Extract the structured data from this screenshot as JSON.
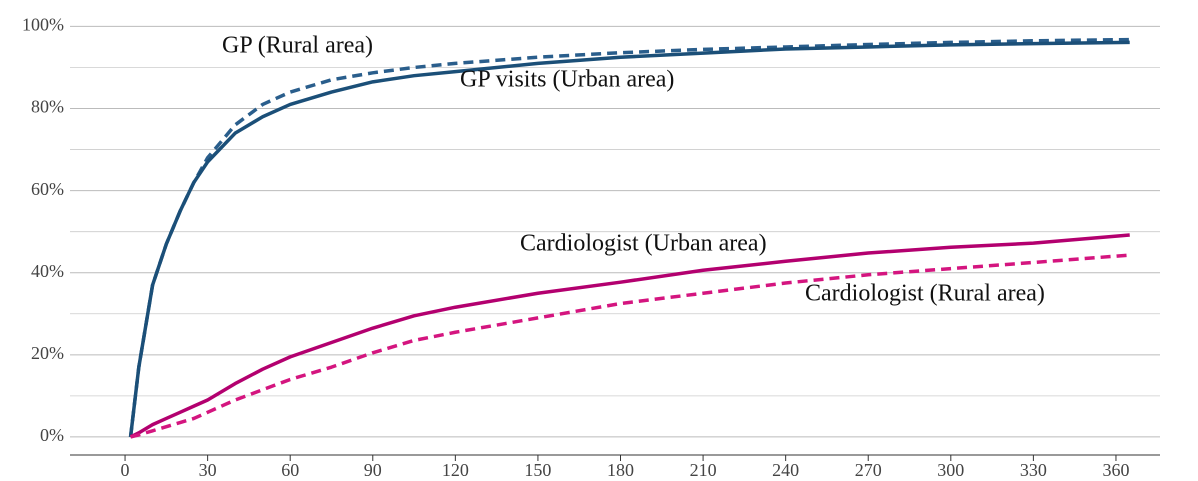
{
  "chart_data": {
    "type": "line",
    "x": [
      2,
      5,
      10,
      15,
      20,
      25,
      30,
      40,
      50,
      60,
      75,
      90,
      105,
      120,
      150,
      180,
      210,
      240,
      270,
      300,
      330,
      365
    ],
    "series": [
      {
        "name": "GP (Rural area)",
        "color": "#2a5e8c",
        "dash": true,
        "values": [
          0,
          17,
          37,
          47,
          55,
          62,
          68,
          76,
          81,
          84,
          87,
          88.7,
          90,
          91,
          92.5,
          93.6,
          94.4,
          95,
          95.6,
          96.1,
          96.5,
          96.8
        ]
      },
      {
        "name": "GP visits (Urban area)",
        "color": "#1b4f78",
        "dash": false,
        "values": [
          0,
          17,
          37,
          47,
          55,
          62,
          67,
          74,
          78,
          81,
          84,
          86.5,
          88,
          89,
          91,
          92.5,
          93.5,
          94.5,
          95,
          95.5,
          95.8,
          96.1
        ]
      },
      {
        "name": "Cardiologist (Urban area)",
        "color": "#b3006f",
        "dash": false,
        "values": [
          0,
          1,
          3,
          4.5,
          6,
          7.5,
          9,
          13,
          16.5,
          19.5,
          23,
          26.5,
          29.5,
          31.6,
          35,
          37.7,
          40.6,
          42.8,
          44.8,
          46.2,
          47.2,
          49.2
        ]
      },
      {
        "name": "Cardiologist (Rural area)",
        "color": "#d4157f",
        "dash": true,
        "values": [
          0,
          0.5,
          1.5,
          2.5,
          3.5,
          4.5,
          6,
          9,
          11.5,
          14,
          17,
          20.5,
          23.5,
          25.5,
          29,
          32.5,
          35,
          37.5,
          39.5,
          41,
          42.5,
          44.3
        ]
      }
    ],
    "xlim": [
      -20,
      376
    ],
    "xticks": [
      0,
      30,
      60,
      90,
      120,
      150,
      180,
      210,
      240,
      270,
      300,
      330,
      360
    ],
    "ylim": [
      -4.4,
      104
    ],
    "yticks": [
      {
        "value": 0,
        "label": "0%"
      },
      {
        "value": 20,
        "label": "20%"
      },
      {
        "value": 40,
        "label": "40%"
      },
      {
        "value": 60,
        "label": "60%"
      },
      {
        "value": 80,
        "label": "80%"
      },
      {
        "value": 100,
        "label": "100%"
      }
    ],
    "minor_yticks": [
      10,
      30,
      50,
      70,
      90
    ],
    "grid": true
  }
}
